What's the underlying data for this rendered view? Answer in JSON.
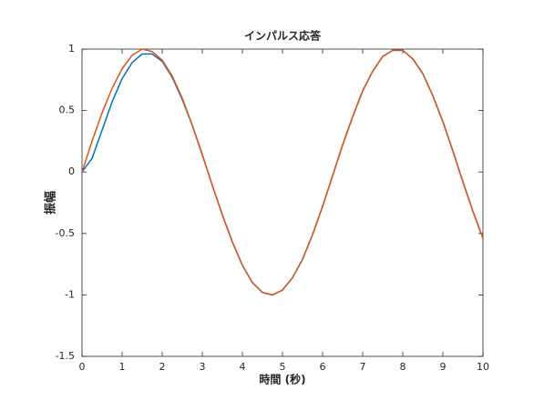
{
  "chart_data": {
    "type": "line",
    "title": "インパルス応答",
    "xlabel": "時間 (秒)",
    "ylabel": "振幅",
    "x": [
      0,
      0.25,
      0.5,
      0.75,
      1,
      1.25,
      1.5,
      1.75,
      2,
      2.25,
      2.5,
      2.75,
      3,
      3.25,
      3.5,
      3.75,
      4,
      4.25,
      4.5,
      4.75,
      5,
      5.25,
      5.5,
      5.75,
      6,
      6.25,
      6.5,
      6.75,
      7,
      7.25,
      7.5,
      7.75,
      8,
      8.25,
      8.5,
      8.75,
      9,
      9.25,
      9.5,
      9.75,
      10
    ],
    "series": [
      {
        "color": "#0072bd",
        "values": [
          0,
          0.11,
          0.34,
          0.57,
          0.76,
          0.89,
          0.96,
          0.96,
          0.9,
          0.77,
          0.59,
          0.38,
          0.14,
          -0.11,
          -0.35,
          -0.57,
          -0.76,
          -0.9,
          -0.98,
          -1,
          -0.96,
          -0.86,
          -0.71,
          -0.51,
          -0.28,
          -0.03,
          0.22,
          0.45,
          0.66,
          0.82,
          0.94,
          0.99,
          0.99,
          0.92,
          0.8,
          0.62,
          0.41,
          0.17,
          -0.08,
          -0.32,
          -0.54
        ]
      },
      {
        "color": "#d95319",
        "values": [
          0,
          0.25,
          0.48,
          0.68,
          0.84,
          0.95,
          1,
          0.98,
          0.91,
          0.78,
          0.6,
          0.38,
          0.14,
          -0.11,
          -0.35,
          -0.57,
          -0.76,
          -0.9,
          -0.98,
          -1,
          -0.96,
          -0.86,
          -0.71,
          -0.51,
          -0.28,
          -0.03,
          0.22,
          0.45,
          0.66,
          0.82,
          0.94,
          0.99,
          0.99,
          0.92,
          0.8,
          0.62,
          0.41,
          0.17,
          -0.08,
          -0.32,
          -0.54
        ]
      }
    ],
    "xlim": [
      0,
      10
    ],
    "xticks": [
      0,
      1,
      2,
      3,
      4,
      5,
      6,
      7,
      8,
      9,
      10
    ],
    "ylim": [
      -1.5,
      1
    ],
    "yticks": [
      -1.5,
      -1,
      -0.5,
      0,
      0.5,
      1
    ],
    "grid": false
  }
}
